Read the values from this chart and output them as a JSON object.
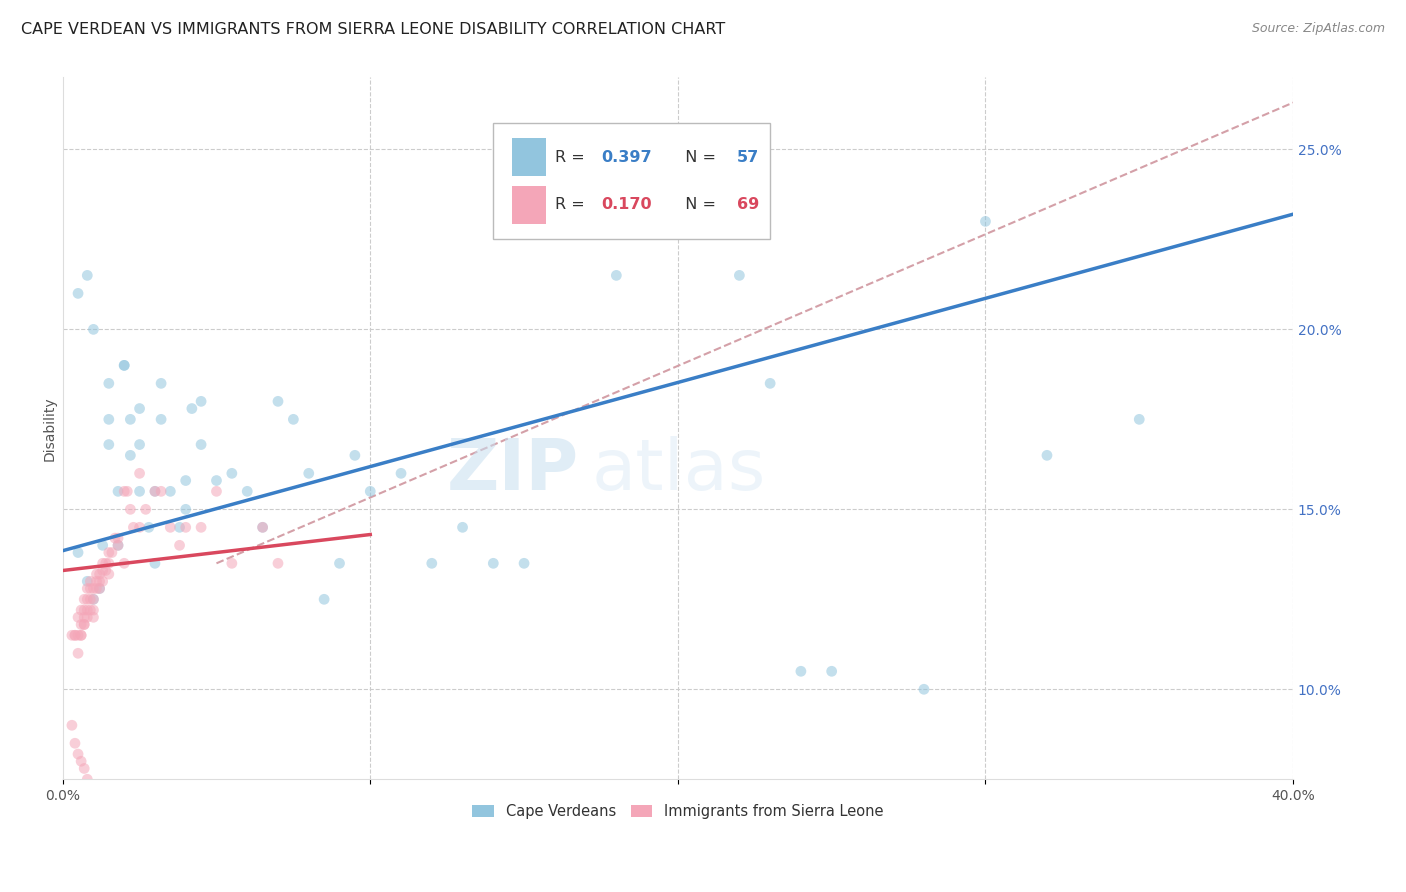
{
  "title": "CAPE VERDEAN VS IMMIGRANTS FROM SIERRA LEONE DISABILITY CORRELATION CHART",
  "source": "Source: ZipAtlas.com",
  "ylabel": "Disability",
  "xlim": [
    0.0,
    0.4
  ],
  "ylim": [
    0.075,
    0.27
  ],
  "yticks_right": [
    0.1,
    0.15,
    0.2,
    0.25
  ],
  "ytick_right_labels": [
    "10.0%",
    "15.0%",
    "20.0%",
    "25.0%"
  ],
  "blue_color": "#92c5de",
  "pink_color": "#f4a6b8",
  "blue_line_color": "#3a7ec6",
  "pink_line_color": "#d9485e",
  "legend_label_blue": "Cape Verdeans",
  "legend_label_pink": "Immigrants from Sierra Leone",
  "title_fontsize": 11.5,
  "axis_label_fontsize": 10,
  "tick_fontsize": 10,
  "source_fontsize": 9,
  "watermark_text": "ZIPatlas",
  "scatter_size": 60,
  "scatter_alpha": 0.55,
  "blue_line_x0": 0.0,
  "blue_line_y0": 0.1385,
  "blue_line_x1": 0.4,
  "blue_line_y1": 0.232,
  "pink_line_x0": 0.0,
  "pink_line_y0": 0.133,
  "pink_line_x1": 0.1,
  "pink_line_y1": 0.143,
  "dash_line_x0": 0.05,
  "dash_line_y0": 0.135,
  "dash_line_x1": 0.4,
  "dash_line_y1": 0.263,
  "blue_scatter_x": [
    0.005,
    0.008,
    0.01,
    0.012,
    0.013,
    0.015,
    0.015,
    0.018,
    0.018,
    0.02,
    0.022,
    0.022,
    0.025,
    0.025,
    0.025,
    0.028,
    0.03,
    0.03,
    0.032,
    0.032,
    0.035,
    0.038,
    0.04,
    0.04,
    0.042,
    0.045,
    0.045,
    0.05,
    0.055,
    0.06,
    0.065,
    0.07,
    0.075,
    0.08,
    0.085,
    0.09,
    0.095,
    0.1,
    0.11,
    0.12,
    0.13,
    0.14,
    0.15,
    0.18,
    0.19,
    0.22,
    0.23,
    0.24,
    0.25,
    0.28,
    0.3,
    0.32,
    0.35,
    0.005,
    0.008,
    0.01,
    0.015,
    0.02
  ],
  "blue_scatter_y": [
    0.138,
    0.13,
    0.125,
    0.128,
    0.14,
    0.175,
    0.168,
    0.14,
    0.155,
    0.19,
    0.165,
    0.175,
    0.155,
    0.168,
    0.178,
    0.145,
    0.135,
    0.155,
    0.185,
    0.175,
    0.155,
    0.145,
    0.15,
    0.158,
    0.178,
    0.168,
    0.18,
    0.158,
    0.16,
    0.155,
    0.145,
    0.18,
    0.175,
    0.16,
    0.125,
    0.135,
    0.165,
    0.155,
    0.16,
    0.135,
    0.145,
    0.135,
    0.135,
    0.215,
    0.235,
    0.215,
    0.185,
    0.105,
    0.105,
    0.1,
    0.23,
    0.165,
    0.175,
    0.21,
    0.215,
    0.2,
    0.185,
    0.19
  ],
  "pink_scatter_x": [
    0.003,
    0.004,
    0.004,
    0.005,
    0.005,
    0.005,
    0.006,
    0.006,
    0.006,
    0.006,
    0.007,
    0.007,
    0.007,
    0.007,
    0.007,
    0.008,
    0.008,
    0.008,
    0.008,
    0.009,
    0.009,
    0.009,
    0.009,
    0.01,
    0.01,
    0.01,
    0.01,
    0.011,
    0.011,
    0.011,
    0.012,
    0.012,
    0.012,
    0.013,
    0.013,
    0.013,
    0.014,
    0.014,
    0.015,
    0.015,
    0.015,
    0.016,
    0.017,
    0.018,
    0.018,
    0.02,
    0.02,
    0.021,
    0.022,
    0.023,
    0.025,
    0.025,
    0.027,
    0.03,
    0.032,
    0.035,
    0.038,
    0.04,
    0.045,
    0.05,
    0.055,
    0.065,
    0.07,
    0.003,
    0.004,
    0.005,
    0.006,
    0.007,
    0.008
  ],
  "pink_scatter_y": [
    0.115,
    0.115,
    0.115,
    0.12,
    0.115,
    0.11,
    0.122,
    0.118,
    0.115,
    0.115,
    0.125,
    0.122,
    0.12,
    0.118,
    0.118,
    0.128,
    0.125,
    0.122,
    0.12,
    0.13,
    0.128,
    0.125,
    0.122,
    0.128,
    0.125,
    0.122,
    0.12,
    0.132,
    0.13,
    0.128,
    0.132,
    0.13,
    0.128,
    0.135,
    0.133,
    0.13,
    0.135,
    0.133,
    0.138,
    0.135,
    0.132,
    0.138,
    0.142,
    0.142,
    0.14,
    0.155,
    0.135,
    0.155,
    0.15,
    0.145,
    0.16,
    0.145,
    0.15,
    0.155,
    0.155,
    0.145,
    0.14,
    0.145,
    0.145,
    0.155,
    0.135,
    0.145,
    0.135,
    0.09,
    0.085,
    0.082,
    0.08,
    0.078,
    0.075
  ]
}
